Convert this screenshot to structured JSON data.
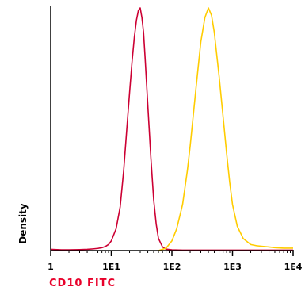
{
  "chart_data": {
    "type": "line",
    "xlabel": "CD10 FITC",
    "ylabel": "Density",
    "x_scale": "log",
    "xlim": [
      1,
      10000
    ],
    "ylim": [
      0,
      1
    ],
    "x_ticks": [
      {
        "value": 1,
        "label": "1"
      },
      {
        "value": 10,
        "label": "1E1"
      },
      {
        "value": 100,
        "label": "1E2"
      },
      {
        "value": 1000,
        "label": "1E3"
      },
      {
        "value": 10000,
        "label": "1E4"
      }
    ],
    "grid": false,
    "legend": "none",
    "colors": {
      "xlabel": "#e8002a",
      "axis": "#000000"
    },
    "series": [
      {
        "color": "#cc0033",
        "x": [
          1,
          1.5,
          2,
          3,
          4,
          5,
          6,
          7,
          8,
          9,
          10,
          12,
          14,
          16,
          18,
          20,
          22,
          24,
          26,
          28,
          30,
          32,
          34,
          36,
          40,
          45,
          50,
          55,
          60,
          70,
          80,
          100,
          150,
          300,
          1000,
          10000
        ],
        "y": [
          0.005,
          0.003,
          0.003,
          0.004,
          0.005,
          0.007,
          0.009,
          0.012,
          0.017,
          0.025,
          0.04,
          0.09,
          0.18,
          0.33,
          0.5,
          0.65,
          0.78,
          0.88,
          0.95,
          0.99,
          1.0,
          0.96,
          0.9,
          0.8,
          0.6,
          0.38,
          0.21,
          0.11,
          0.05,
          0.015,
          0.006,
          0.003,
          0.002,
          0.002,
          0.002,
          0.002
        ]
      },
      {
        "color": "#ffcc00",
        "x": [
          60,
          80,
          100,
          120,
          150,
          180,
          200,
          250,
          300,
          350,
          400,
          450,
          500,
          600,
          700,
          800,
          900,
          1000,
          1200,
          1500,
          2000,
          2500,
          3000,
          4000,
          5000,
          7000,
          10000
        ],
        "y": [
          0.0,
          0.01,
          0.04,
          0.09,
          0.19,
          0.33,
          0.43,
          0.67,
          0.86,
          0.96,
          1.0,
          0.97,
          0.9,
          0.72,
          0.55,
          0.4,
          0.28,
          0.19,
          0.1,
          0.05,
          0.025,
          0.02,
          0.018,
          0.015,
          0.012,
          0.01,
          0.01
        ]
      }
    ]
  }
}
